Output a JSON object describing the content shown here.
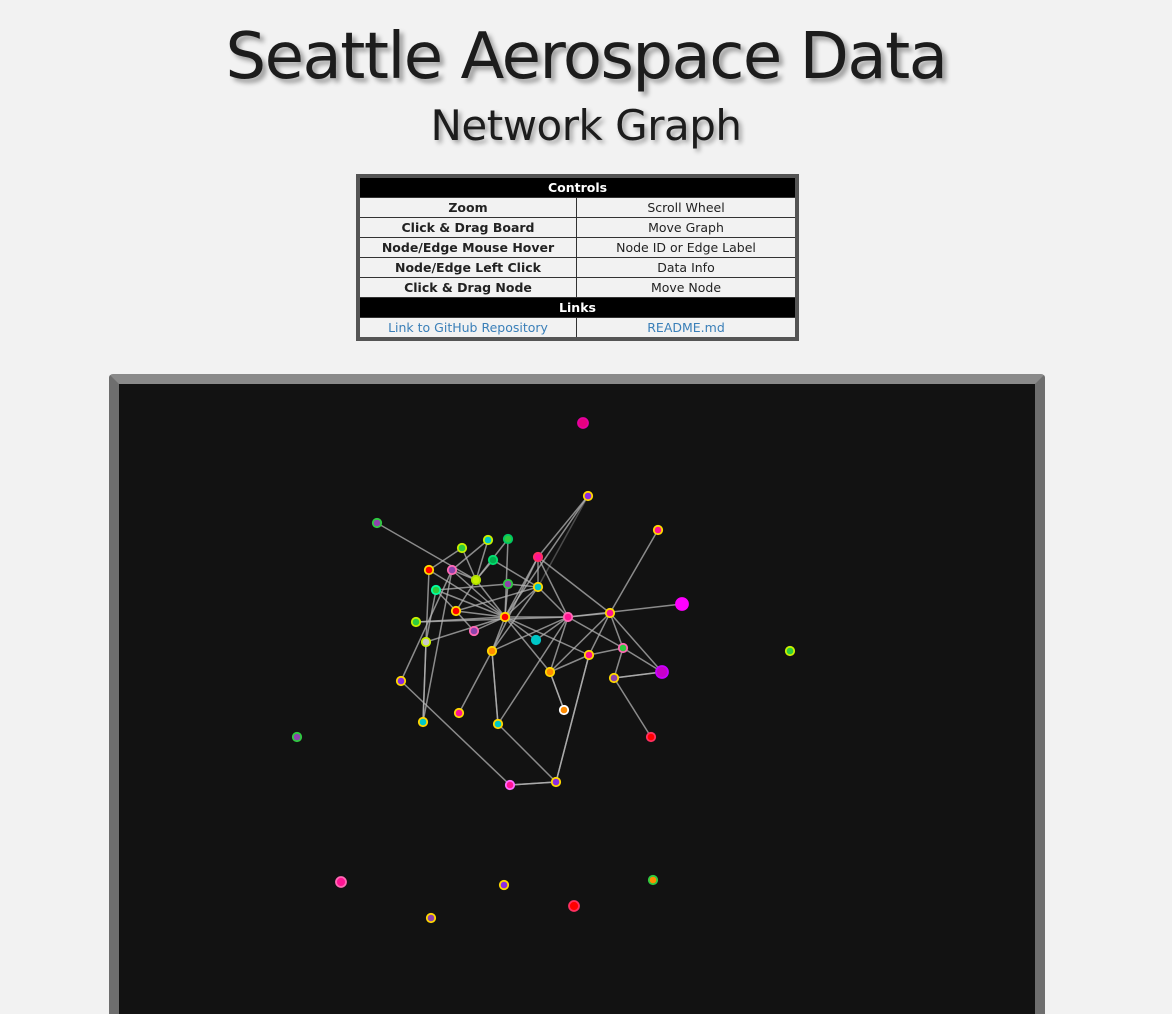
{
  "header": {
    "title": "Seattle Aerospace Data",
    "subtitle": "Network Graph"
  },
  "controls": {
    "heading": "Controls",
    "rows": [
      {
        "key": "Zoom",
        "value": "Scroll Wheel"
      },
      {
        "key": "Click & Drag Board",
        "value": "Move Graph"
      },
      {
        "key": "Node/Edge Mouse Hover",
        "value": "Node ID or Edge Label"
      },
      {
        "key": "Node/Edge Left Click",
        "value": "Data Info"
      },
      {
        "key": "Click & Drag Node",
        "value": "Move Node"
      }
    ],
    "links_heading": "Links",
    "links": [
      {
        "label": "Link to GitHub Repository"
      },
      {
        "label": "README.md"
      }
    ]
  },
  "graph": {
    "background": "#121212",
    "edge_color": "#b4b4b4",
    "nodes": [
      {
        "id": 0,
        "fill": "#e6007e",
        "stroke": "#e600a0"
      },
      {
        "id": 1,
        "fill": "#8a2be2",
        "stroke": "#ffd700"
      },
      {
        "id": 2,
        "fill": "#ff1493",
        "stroke": "#ffd700"
      },
      {
        "id": 3,
        "fill": "#8e44ad",
        "stroke": "#2ecc40"
      },
      {
        "id": 4,
        "fill": "#ff0000",
        "stroke": "#ffd700"
      },
      {
        "id": 5,
        "fill": "#2ecc40",
        "stroke": "#c8f000"
      },
      {
        "id": 6,
        "fill": "#00c8c8",
        "stroke": "#c8f000"
      },
      {
        "id": 7,
        "fill": "#2ecc40",
        "stroke": "#00c864"
      },
      {
        "id": 8,
        "fill": "#00b050",
        "stroke": "#00e070"
      },
      {
        "id": 9,
        "fill": "#ff1493",
        "stroke": "#ff3060"
      },
      {
        "id": 10,
        "fill": "#c8f000",
        "stroke": "#b0e000"
      },
      {
        "id": 11,
        "fill": "#8e44ad",
        "stroke": "#ff69b4"
      },
      {
        "id": 12,
        "fill": "#ff0000",
        "stroke": "#ffd700"
      },
      {
        "id": 13,
        "fill": "#8e44ad",
        "stroke": "#2ecc40"
      },
      {
        "id": 14,
        "fill": "#00c8c8",
        "stroke": "#ffd700"
      },
      {
        "id": 15,
        "fill": "#ff1493",
        "stroke": "#ff69b4"
      },
      {
        "id": 16,
        "fill": "#2ecc40",
        "stroke": "#00ffa0"
      },
      {
        "id": 17,
        "fill": "#ff0000",
        "stroke": "#ffd700"
      },
      {
        "id": 18,
        "fill": "#ff00ff",
        "stroke": "#ff00ff"
      },
      {
        "id": 19,
        "fill": "#ff1493",
        "stroke": "#ffd700"
      },
      {
        "id": 20,
        "fill": "#ff8c00",
        "stroke": "#ffd700"
      },
      {
        "id": 21,
        "fill": "#2ecc40",
        "stroke": "#c8f000"
      },
      {
        "id": 22,
        "fill": "#8e44ad",
        "stroke": "#ff69b4"
      },
      {
        "id": 23,
        "fill": "#c8c8c8",
        "stroke": "#c8f000"
      },
      {
        "id": 24,
        "fill": "#00c8c8",
        "stroke": "#00c8c8"
      },
      {
        "id": 25,
        "fill": "#ff1493",
        "stroke": "#ffd700"
      },
      {
        "id": 26,
        "fill": "#2ecc40",
        "stroke": "#ff69b4"
      },
      {
        "id": 27,
        "fill": "#ff8c00",
        "stroke": "#ffd700"
      },
      {
        "id": 28,
        "fill": "#c800c8",
        "stroke": "#c800ff"
      },
      {
        "id": 29,
        "fill": "#8e44ad",
        "stroke": "#ffd700"
      },
      {
        "id": 30,
        "fill": "#8a2be2",
        "stroke": "#ffd700"
      },
      {
        "id": 31,
        "fill": "#00c8c8",
        "stroke": "#ffd700"
      },
      {
        "id": 32,
        "fill": "#ff8c00",
        "stroke": "#ffffff"
      },
      {
        "id": 33,
        "fill": "#ff1493",
        "stroke": "#ff69ff"
      },
      {
        "id": 34,
        "fill": "#8a2be2",
        "stroke": "#ffd700"
      },
      {
        "id": 35,
        "fill": "#00c8c8",
        "stroke": "#ffd700"
      },
      {
        "id": 36,
        "fill": "#ff1493",
        "stroke": "#ffd700"
      },
      {
        "id": 37,
        "fill": "#ff0000",
        "stroke": "#ff3060"
      },
      {
        "id": 38,
        "fill": "#2ecc40",
        "stroke": "#c8f000"
      },
      {
        "id": 39,
        "fill": "#8e44ad",
        "stroke": "#2ecc40"
      },
      {
        "id": 40,
        "fill": "#ff1493",
        "stroke": "#ff69b4"
      },
      {
        "id": 41,
        "fill": "#8a2be2",
        "stroke": "#ffd700"
      },
      {
        "id": 42,
        "fill": "#ff0000",
        "stroke": "#ff3060"
      },
      {
        "id": 43,
        "fill": "#ff8c00",
        "stroke": "#2ecc40"
      },
      {
        "id": 44,
        "fill": "#8e44ad",
        "stroke": "#ffd700"
      }
    ],
    "edges": [
      [
        4,
        7
      ],
      [
        4,
        10
      ],
      [
        4,
        11
      ],
      [
        4,
        12
      ],
      [
        4,
        16
      ],
      [
        4,
        22
      ],
      [
        4,
        23
      ],
      [
        4,
        20
      ],
      [
        4,
        17
      ],
      [
        4,
        24
      ],
      [
        4,
        27
      ],
      [
        4,
        14
      ],
      [
        4,
        1
      ],
      [
        4,
        25
      ],
      [
        4,
        9
      ],
      [
        4,
        13
      ],
      [
        4,
        21
      ],
      [
        4,
        15
      ],
      [
        3,
        10
      ],
      [
        5,
        10
      ],
      [
        6,
        10
      ],
      [
        7,
        10
      ],
      [
        8,
        10
      ],
      [
        10,
        17
      ],
      [
        10,
        11
      ],
      [
        13,
        14
      ],
      [
        13,
        16
      ],
      [
        14,
        17
      ],
      [
        14,
        8
      ],
      [
        16,
        17
      ],
      [
        16,
        23
      ],
      [
        17,
        22
      ],
      [
        12,
        23
      ],
      [
        6,
        11
      ],
      [
        5,
        12
      ],
      [
        9,
        14
      ],
      [
        9,
        15
      ],
      [
        9,
        19
      ],
      [
        9,
        20
      ],
      [
        1,
        9
      ],
      [
        14,
        15
      ],
      [
        15,
        19
      ],
      [
        15,
        21
      ],
      [
        15,
        18
      ],
      [
        15,
        27
      ],
      [
        15,
        26
      ],
      [
        15,
        24
      ],
      [
        15,
        20
      ],
      [
        15,
        35
      ],
      [
        19,
        2
      ],
      [
        19,
        25
      ],
      [
        19,
        26
      ],
      [
        19,
        28
      ],
      [
        19,
        27
      ],
      [
        25,
        26
      ],
      [
        26,
        28
      ],
      [
        28,
        29
      ],
      [
        29,
        26
      ],
      [
        27,
        32
      ],
      [
        25,
        27
      ],
      [
        11,
        30
      ],
      [
        11,
        31
      ],
      [
        30,
        33
      ],
      [
        33,
        34
      ],
      [
        34,
        35
      ],
      [
        34,
        25
      ],
      [
        23,
        31
      ],
      [
        20,
        36
      ],
      [
        20,
        35
      ],
      [
        14,
        20
      ]
    ]
  }
}
